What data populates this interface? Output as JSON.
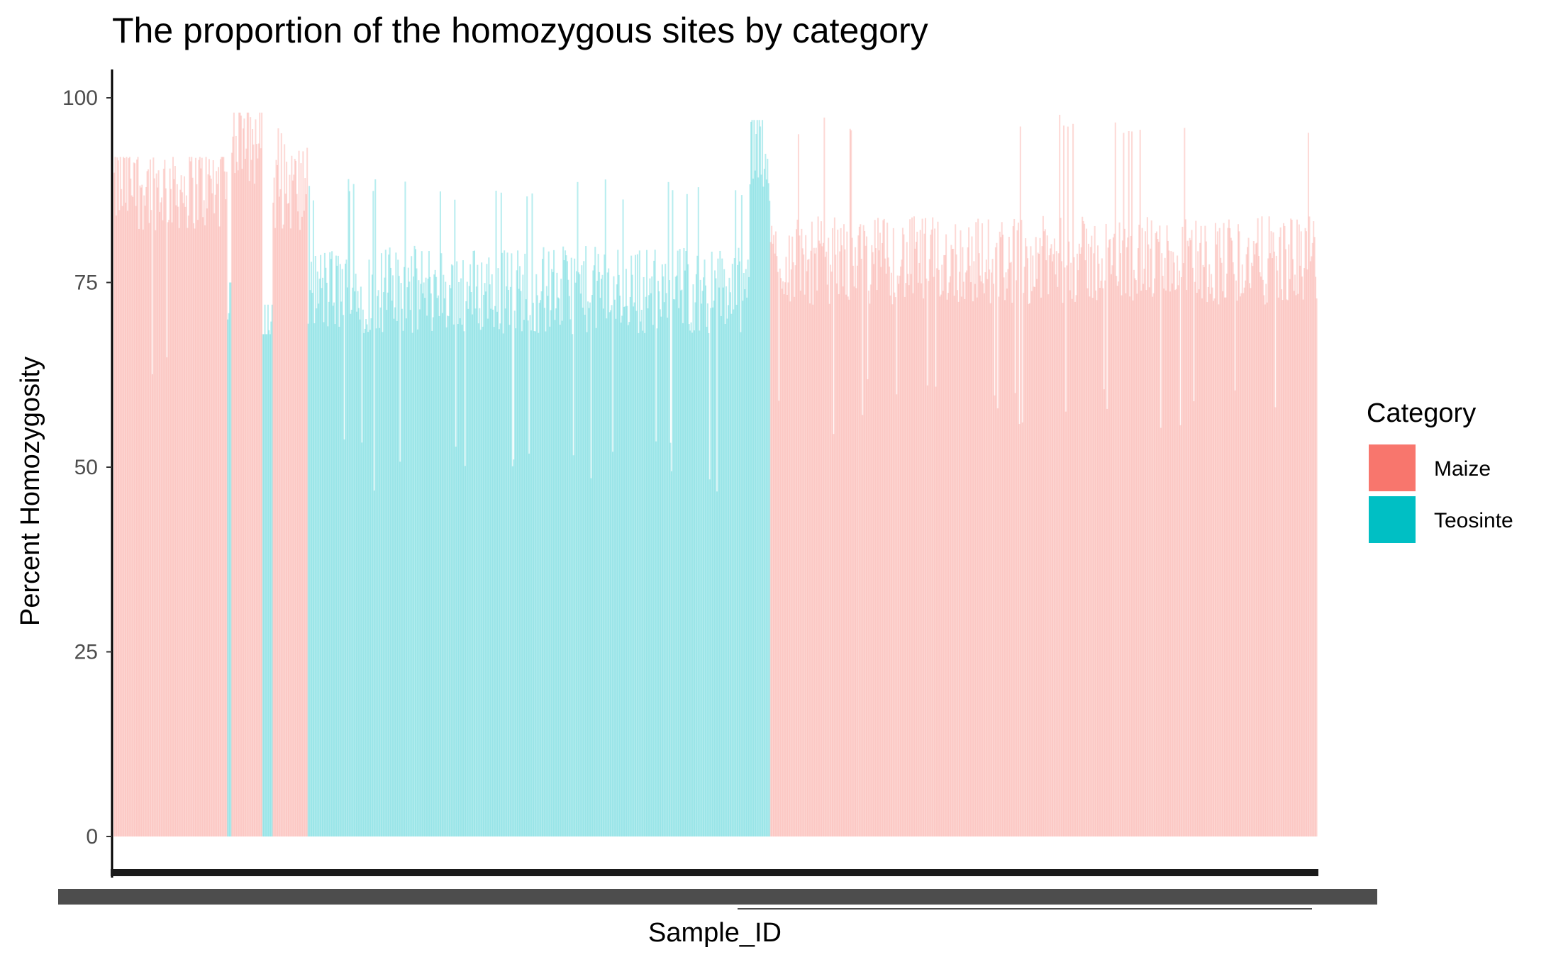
{
  "chart_data": {
    "type": "bar",
    "title": "The proportion of the homozygous sites by category",
    "xlabel": "Sample_ID",
    "ylabel": "Percent Homozygosity",
    "ylim": [
      0,
      103
    ],
    "yticks": [
      0,
      25,
      50,
      75,
      100
    ],
    "grid": false,
    "legend": {
      "title": "Category",
      "position": "right",
      "entries": [
        {
          "name": "Maize",
          "color": "#F8766D"
        },
        {
          "name": "Teosinte",
          "color": "#00BFC4"
        }
      ]
    },
    "bar_alpha": 0.28,
    "series": [
      {
        "name": "Maize",
        "color": "#F8766D"
      },
      {
        "name": "Teosinte",
        "color": "#00BFC4"
      }
    ],
    "sample_groups": [
      {
        "category": "Maize",
        "n_samples": 110,
        "typical_percent": 88,
        "range": [
          60,
          92
        ]
      },
      {
        "category": "Teosinte",
        "n_samples": 4,
        "typical_percent": 72,
        "range": [
          70,
          75
        ]
      },
      {
        "category": "Maize",
        "n_samples": 30,
        "typical_percent": 94,
        "range": [
          88,
          98
        ]
      },
      {
        "category": "Teosinte",
        "n_samples": 10,
        "typical_percent": 70,
        "range": [
          68,
          72
        ]
      },
      {
        "category": "Maize",
        "n_samples": 34,
        "typical_percent": 88,
        "range": [
          75,
          97
        ]
      },
      {
        "category": "Teosinte",
        "n_samples": 428,
        "typical_percent": 74,
        "range": [
          46,
          89
        ]
      },
      {
        "category": "Teosinte",
        "n_samples": 20,
        "typical_percent": 93,
        "range": [
          85,
          97
        ]
      },
      {
        "category": "Maize",
        "n_samples": 530,
        "typical_percent": 78,
        "range": [
          54,
          98
        ]
      }
    ]
  }
}
